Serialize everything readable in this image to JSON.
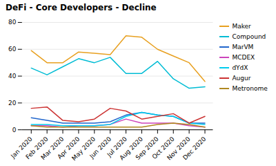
{
  "chart_data": {
    "type": "line",
    "title": "DeFi - Core Developers - Decline",
    "categories": [
      "Jan 2020",
      "Feb 2020",
      "Mar 2020",
      "Apr 2020",
      "May 2020",
      "Jun 2020",
      "Jul 2020",
      "Aug 2020",
      "Sep 2020",
      "Oct 2020",
      "Nov 2020",
      "Dec 2020"
    ],
    "series": [
      {
        "name": "Maker",
        "color": "#e8a020",
        "values": [
          59,
          50,
          50,
          58,
          57,
          56,
          70,
          69,
          60,
          55,
          50,
          36
        ]
      },
      {
        "name": "Compound",
        "color": "#00bcd4",
        "values": [
          46,
          41,
          47,
          53,
          50,
          54,
          42,
          42,
          51,
          38,
          31,
          32
        ]
      },
      {
        "name": "MarVM",
        "color": "#2166cc",
        "values": [
          9,
          7,
          5,
          5,
          5,
          6,
          11,
          13,
          11,
          10,
          5,
          5
        ]
      },
      {
        "name": "MCDEX",
        "color": "#cc44bb",
        "values": [
          3,
          3,
          2,
          3,
          3,
          4,
          8,
          5,
          5,
          5,
          3,
          2
        ]
      },
      {
        "name": "dYdX",
        "color": "#00ccee",
        "values": [
          4,
          4,
          3,
          3,
          3,
          4,
          10,
          13,
          11,
          10,
          5,
          4
        ]
      },
      {
        "name": "Augur",
        "color": "#cc3333",
        "values": [
          16,
          17,
          7,
          6,
          8,
          16,
          14,
          8,
          10,
          12,
          5,
          10
        ]
      },
      {
        "name": "Metronome",
        "color": "#b08820",
        "values": [
          3,
          2,
          2,
          2,
          2,
          2,
          2,
          2,
          4,
          5,
          4,
          2
        ]
      }
    ],
    "ylim": [
      0,
      80
    ],
    "yticks": [
      0,
      20,
      40,
      60,
      80
    ],
    "grid": true,
    "legend": "right"
  }
}
